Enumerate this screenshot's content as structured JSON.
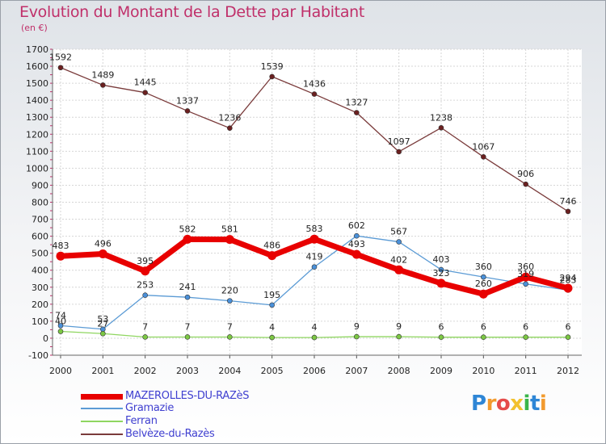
{
  "title": "Evolution du Montant de la Dette par Habitant",
  "subtitle": "(en €)",
  "logo": {
    "text": "Proxiti",
    "letters": [
      {
        "ch": "P",
        "color": "#2e86d6"
      },
      {
        "ch": "r",
        "color": "#f29a2e"
      },
      {
        "ch": "o",
        "color": "#e54b4b"
      },
      {
        "ch": "x",
        "color": "#f2c12e"
      },
      {
        "ch": "i",
        "color": "#3ab54a"
      },
      {
        "ch": "t",
        "color": "#2e86d6"
      },
      {
        "ch": "i",
        "color": "#f29a2e"
      }
    ]
  },
  "chart_data": {
    "type": "line",
    "x": [
      "2000",
      "2001",
      "2002",
      "2003",
      "2004",
      "2005",
      "2006",
      "2007",
      "2008",
      "2009",
      "2010",
      "2011",
      "2012"
    ],
    "ylim": [
      -100,
      1700
    ],
    "yticks": [
      -100,
      0,
      100,
      200,
      300,
      400,
      500,
      600,
      700,
      800,
      900,
      1000,
      1100,
      1200,
      1300,
      1400,
      1500,
      1600,
      1700
    ],
    "grid": true,
    "legend_position": "bottom-left",
    "series": [
      {
        "name": "MAZEROLLES-DU-RAZèS",
        "color": "#e80000",
        "marker": "#e80000",
        "width": 7,
        "values": [
          483,
          496,
          395,
          582,
          581,
          486,
          583,
          493,
          402,
          323,
          260,
          360,
          294
        ],
        "labels": [
          "483",
          "496",
          "395",
          "582",
          "581",
          "486",
          "583",
          "493",
          "402",
          "323",
          "260",
          "360",
          "294"
        ]
      },
      {
        "name": "Gramazie",
        "color": "#5b9bd5",
        "marker": "#4a90d9",
        "width": 1.3,
        "values": [
          74,
          53,
          253,
          241,
          220,
          195,
          419,
          602,
          567,
          403,
          360,
          319,
          283
        ],
        "labels": [
          "74",
          "53",
          "253",
          "241",
          "220",
          "195",
          "419",
          "602",
          "567",
          "403",
          "360",
          "319",
          "283"
        ]
      },
      {
        "name": "Ferran",
        "color": "#8fd660",
        "marker": "#7cc843",
        "width": 1.3,
        "values": [
          40,
          27,
          7,
          7,
          7,
          4,
          4,
          9,
          9,
          6,
          6,
          6,
          6
        ],
        "labels": [
          "40",
          "27",
          "7",
          "7",
          "7",
          "4",
          "4",
          "9",
          "9",
          "6",
          "6",
          "6",
          "6"
        ]
      },
      {
        "name": "Belvèze-du-Razès",
        "color": "#7a3b3b",
        "marker": "#6b2020",
        "width": 1.3,
        "values": [
          1592,
          1489,
          1445,
          1337,
          1236,
          1539,
          1436,
          1327,
          1097,
          1238,
          1067,
          906,
          746
        ],
        "labels": [
          "1592",
          "1489",
          "1445",
          "1337",
          "1236",
          "1539",
          "1436",
          "1327",
          "1097",
          "1238",
          "1067",
          "906",
          "746"
        ]
      }
    ]
  }
}
